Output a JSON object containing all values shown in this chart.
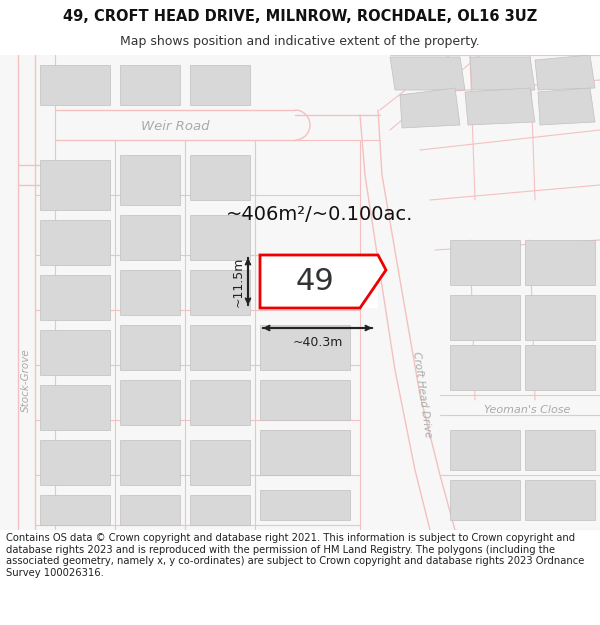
{
  "title_line1": "49, CROFT HEAD DRIVE, MILNROW, ROCHDALE, OL16 3UZ",
  "title_line2": "Map shows position and indicative extent of the property.",
  "footer_text": "Contains OS data © Crown copyright and database right 2021. This information is subject to Crown copyright and database rights 2023 and is reproduced with the permission of HM Land Registry. The polygons (including the associated geometry, namely x, y co-ordinates) are subject to Crown copyright and database rights 2023 Ordnance Survey 100026316.",
  "bg_color": "#ffffff",
  "map_bg": "#f7f7f7",
  "road_color": "#f5c0c0",
  "road_fill": "#f7f7f7",
  "street_label_color": "#aaaaaa",
  "block_color": "#d8d8d8",
  "block_edge_color": "#c0c0c0",
  "highlight_color": "#ee0000",
  "highlight_fill": "#ffffff",
  "dimension_color": "#222222",
  "area_text": "~406m²/~0.100ac.",
  "property_number": "49",
  "dim_width": "~40.3m",
  "dim_height": "~11.5m",
  "title_fontsize": 10.5,
  "subtitle_fontsize": 9,
  "footer_fontsize": 7.2
}
